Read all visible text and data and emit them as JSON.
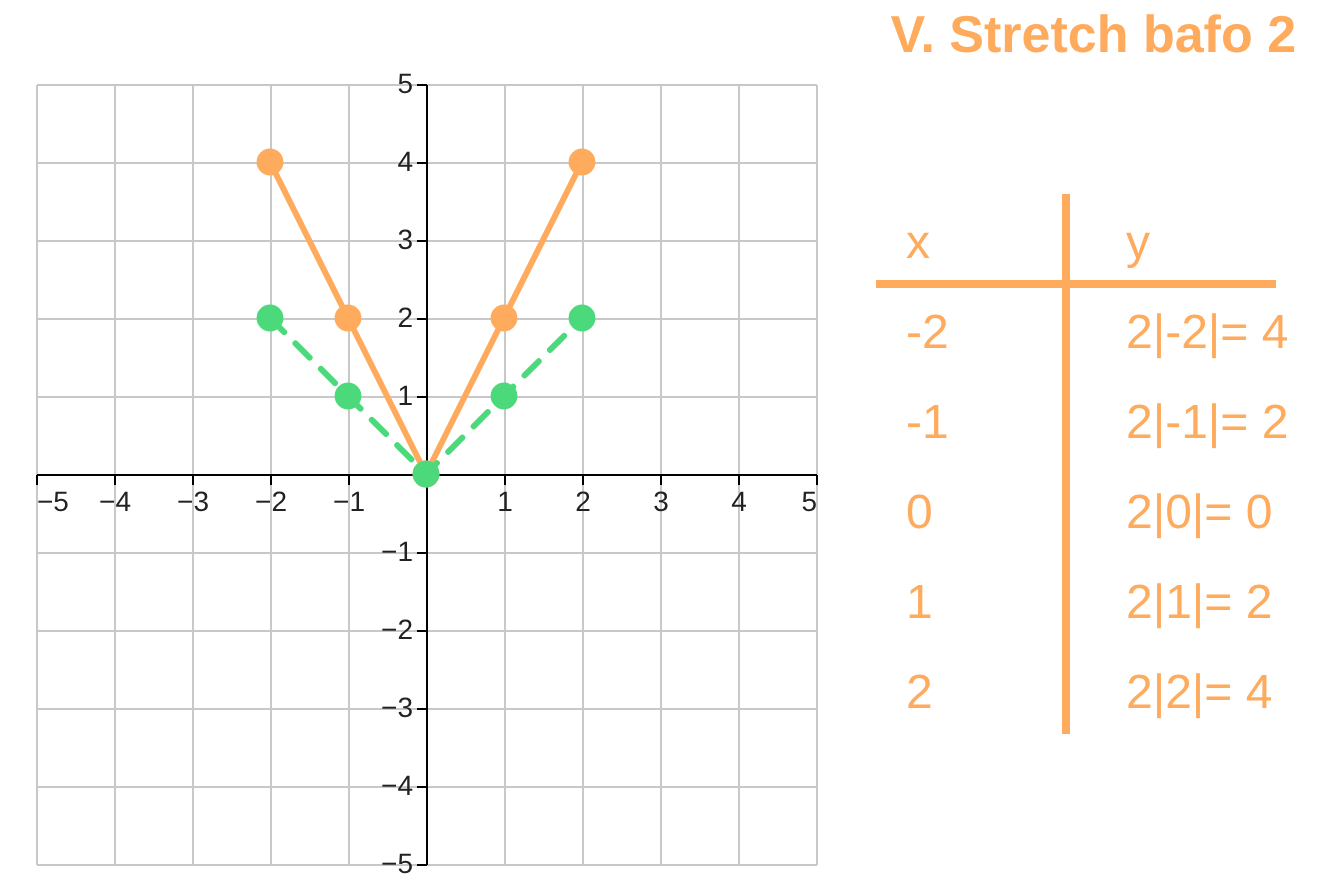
{
  "chart_data": {
    "type": "line",
    "title": "V. Stretch bafo 2",
    "x": [
      -2,
      -1,
      0,
      1,
      2
    ],
    "series": [
      {
        "color": "#ffab5e",
        "values": [
          4,
          2,
          0,
          2,
          4
        ],
        "line_style": "solid"
      },
      {
        "color": "#4cd97b",
        "values": [
          2,
          1,
          0,
          1,
          2
        ],
        "line_style": "dashed"
      }
    ],
    "xlim": [
      -5,
      5
    ],
    "ylim": [
      -5,
      5
    ],
    "xticks": [
      -5,
      -4,
      -3,
      -2,
      -1,
      1,
      2,
      3,
      4,
      5
    ],
    "yticks": [
      -5,
      -4,
      -3,
      -2,
      -1,
      1,
      2,
      3,
      4,
      5
    ],
    "grid": true,
    "marker": "circle",
    "annotations": [
      "x",
      "y",
      "-2",
      "2|-2|= 4",
      "-1",
      "2|-1|= 2",
      "0",
      "2|0|= 0",
      "1",
      "2|1|= 2",
      "2",
      "2|2|= 4"
    ]
  }
}
